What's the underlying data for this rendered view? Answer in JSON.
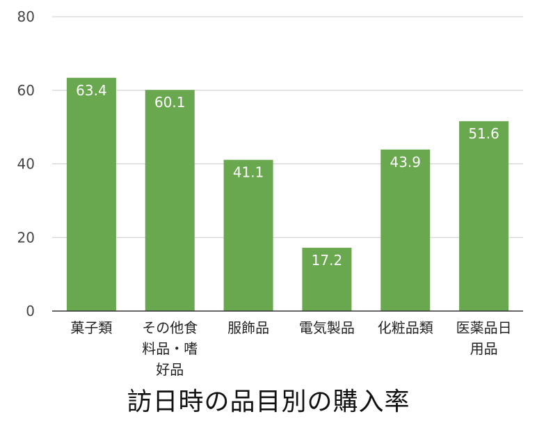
{
  "chart_data": {
    "type": "bar",
    "title": "訪日時の品目別の購入率",
    "categories": [
      "菓子類",
      "その他食料品・嗜好品",
      "服飾品",
      "電気製品",
      "化粧品類",
      "医薬品日用品"
    ],
    "category_lines": [
      [
        "菓子類"
      ],
      [
        "その他食",
        "料品・嗜",
        "好品"
      ],
      [
        "服飾品"
      ],
      [
        "電気製品"
      ],
      [
        "化粧品類"
      ],
      [
        "医薬品日",
        "用品"
      ]
    ],
    "values": [
      63.4,
      60.1,
      41.1,
      17.2,
      43.9,
      51.6
    ],
    "data_labels": [
      "63.4",
      "60.1",
      "41.1",
      "17.2",
      "43.9",
      "51.6"
    ],
    "ylim": [
      0,
      80
    ],
    "yticks": [
      0,
      20,
      40,
      60,
      80
    ],
    "ytick_labels": [
      "0",
      "20",
      "40",
      "60",
      "80"
    ],
    "grid": true,
    "legend": "none",
    "xlabel": "",
    "ylabel": ""
  },
  "colors": {
    "bar": "#6aa84f",
    "grid": "#cccccc",
    "baseline": "#333333",
    "value_label": "#ffffff",
    "tick_label": "#444444"
  }
}
